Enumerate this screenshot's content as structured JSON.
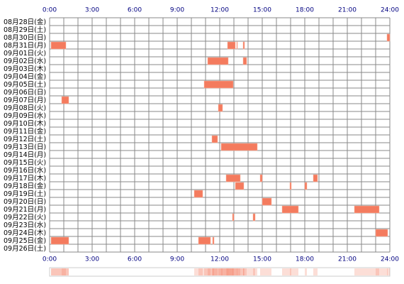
{
  "chart_data": {
    "type": "timeline",
    "color": "#f47b5e",
    "xlim": [
      0,
      24
    ],
    "xticks": [
      {
        "value": 0,
        "label": "0:00"
      },
      {
        "value": 3,
        "label": "3:00"
      },
      {
        "value": 6,
        "label": "6:00"
      },
      {
        "value": 9,
        "label": "9:00"
      },
      {
        "value": 12,
        "label": "12:00"
      },
      {
        "value": 15,
        "label": "15:00"
      },
      {
        "value": 18,
        "label": "18:00"
      },
      {
        "value": 21,
        "label": "21:00"
      },
      {
        "value": 24,
        "label": "24:00"
      }
    ],
    "rows": [
      {
        "label": "08月28日(金)",
        "segments": []
      },
      {
        "label": "08月29日(土)",
        "segments": []
      },
      {
        "label": "08月30日(日)",
        "segments": [
          [
            23.8,
            24
          ]
        ]
      },
      {
        "label": "08月31日(月)",
        "segments": [
          [
            0.1,
            1.15
          ],
          [
            12.55,
            13.1
          ],
          [
            13.2,
            13.25
          ],
          [
            13.65,
            13.75
          ]
        ]
      },
      {
        "label": "09月01日(火)",
        "segments": []
      },
      {
        "label": "09月02日(水)",
        "segments": [
          [
            11.15,
            12.6
          ],
          [
            13.65,
            13.9
          ]
        ]
      },
      {
        "label": "09月03日(木)",
        "segments": []
      },
      {
        "label": "09月04日(金)",
        "segments": []
      },
      {
        "label": "09月05日(土)",
        "segments": [
          [
            10.9,
            12.95
          ]
        ]
      },
      {
        "label": "09月06日(日)",
        "segments": []
      },
      {
        "label": "09月07日(月)",
        "segments": [
          [
            0.85,
            1.35
          ]
        ]
      },
      {
        "label": "09月08日(火)",
        "segments": [
          [
            11.9,
            12.2
          ]
        ]
      },
      {
        "label": "09月09日(水)",
        "segments": []
      },
      {
        "label": "09月10日(木)",
        "segments": []
      },
      {
        "label": "09月11日(金)",
        "segments": []
      },
      {
        "label": "09月12日(土)",
        "segments": [
          [
            11.45,
            11.85
          ]
        ]
      },
      {
        "label": "09月13日(日)",
        "segments": [
          [
            12.1,
            14.65
          ]
        ]
      },
      {
        "label": "09月14日(月)",
        "segments": []
      },
      {
        "label": "09月15日(火)",
        "segments": []
      },
      {
        "label": "09月16日(水)",
        "segments": []
      },
      {
        "label": "09月17日(木)",
        "segments": [
          [
            12.45,
            13.45
          ],
          [
            14.85,
            15.0
          ],
          [
            18.6,
            18.9
          ]
        ]
      },
      {
        "label": "09月18日(金)",
        "segments": [
          [
            13.1,
            13.7
          ],
          [
            16.95,
            17.05
          ],
          [
            18.0,
            18.15
          ]
        ]
      },
      {
        "label": "09月19日(土)",
        "segments": [
          [
            10.2,
            10.8
          ]
        ]
      },
      {
        "label": "09月20日(日)",
        "segments": [
          [
            15.0,
            15.65
          ]
        ]
      },
      {
        "label": "09月21日(月)",
        "segments": [
          [
            16.4,
            17.55
          ],
          [
            21.5,
            23.25
          ]
        ]
      },
      {
        "label": "09月22日(火)",
        "segments": [
          [
            12.9,
            13.0
          ],
          [
            14.35,
            14.5
          ]
        ]
      },
      {
        "label": "09月23日(水)",
        "segments": []
      },
      {
        "label": "09月24日(木)",
        "segments": [
          [
            23.0,
            23.85
          ]
        ]
      },
      {
        "label": "09月25日(金)",
        "segments": [
          [
            0.1,
            1.35
          ],
          [
            10.5,
            11.35
          ],
          [
            11.5,
            11.6
          ]
        ]
      },
      {
        "label": "09月26日(土)",
        "segments": []
      }
    ]
  }
}
